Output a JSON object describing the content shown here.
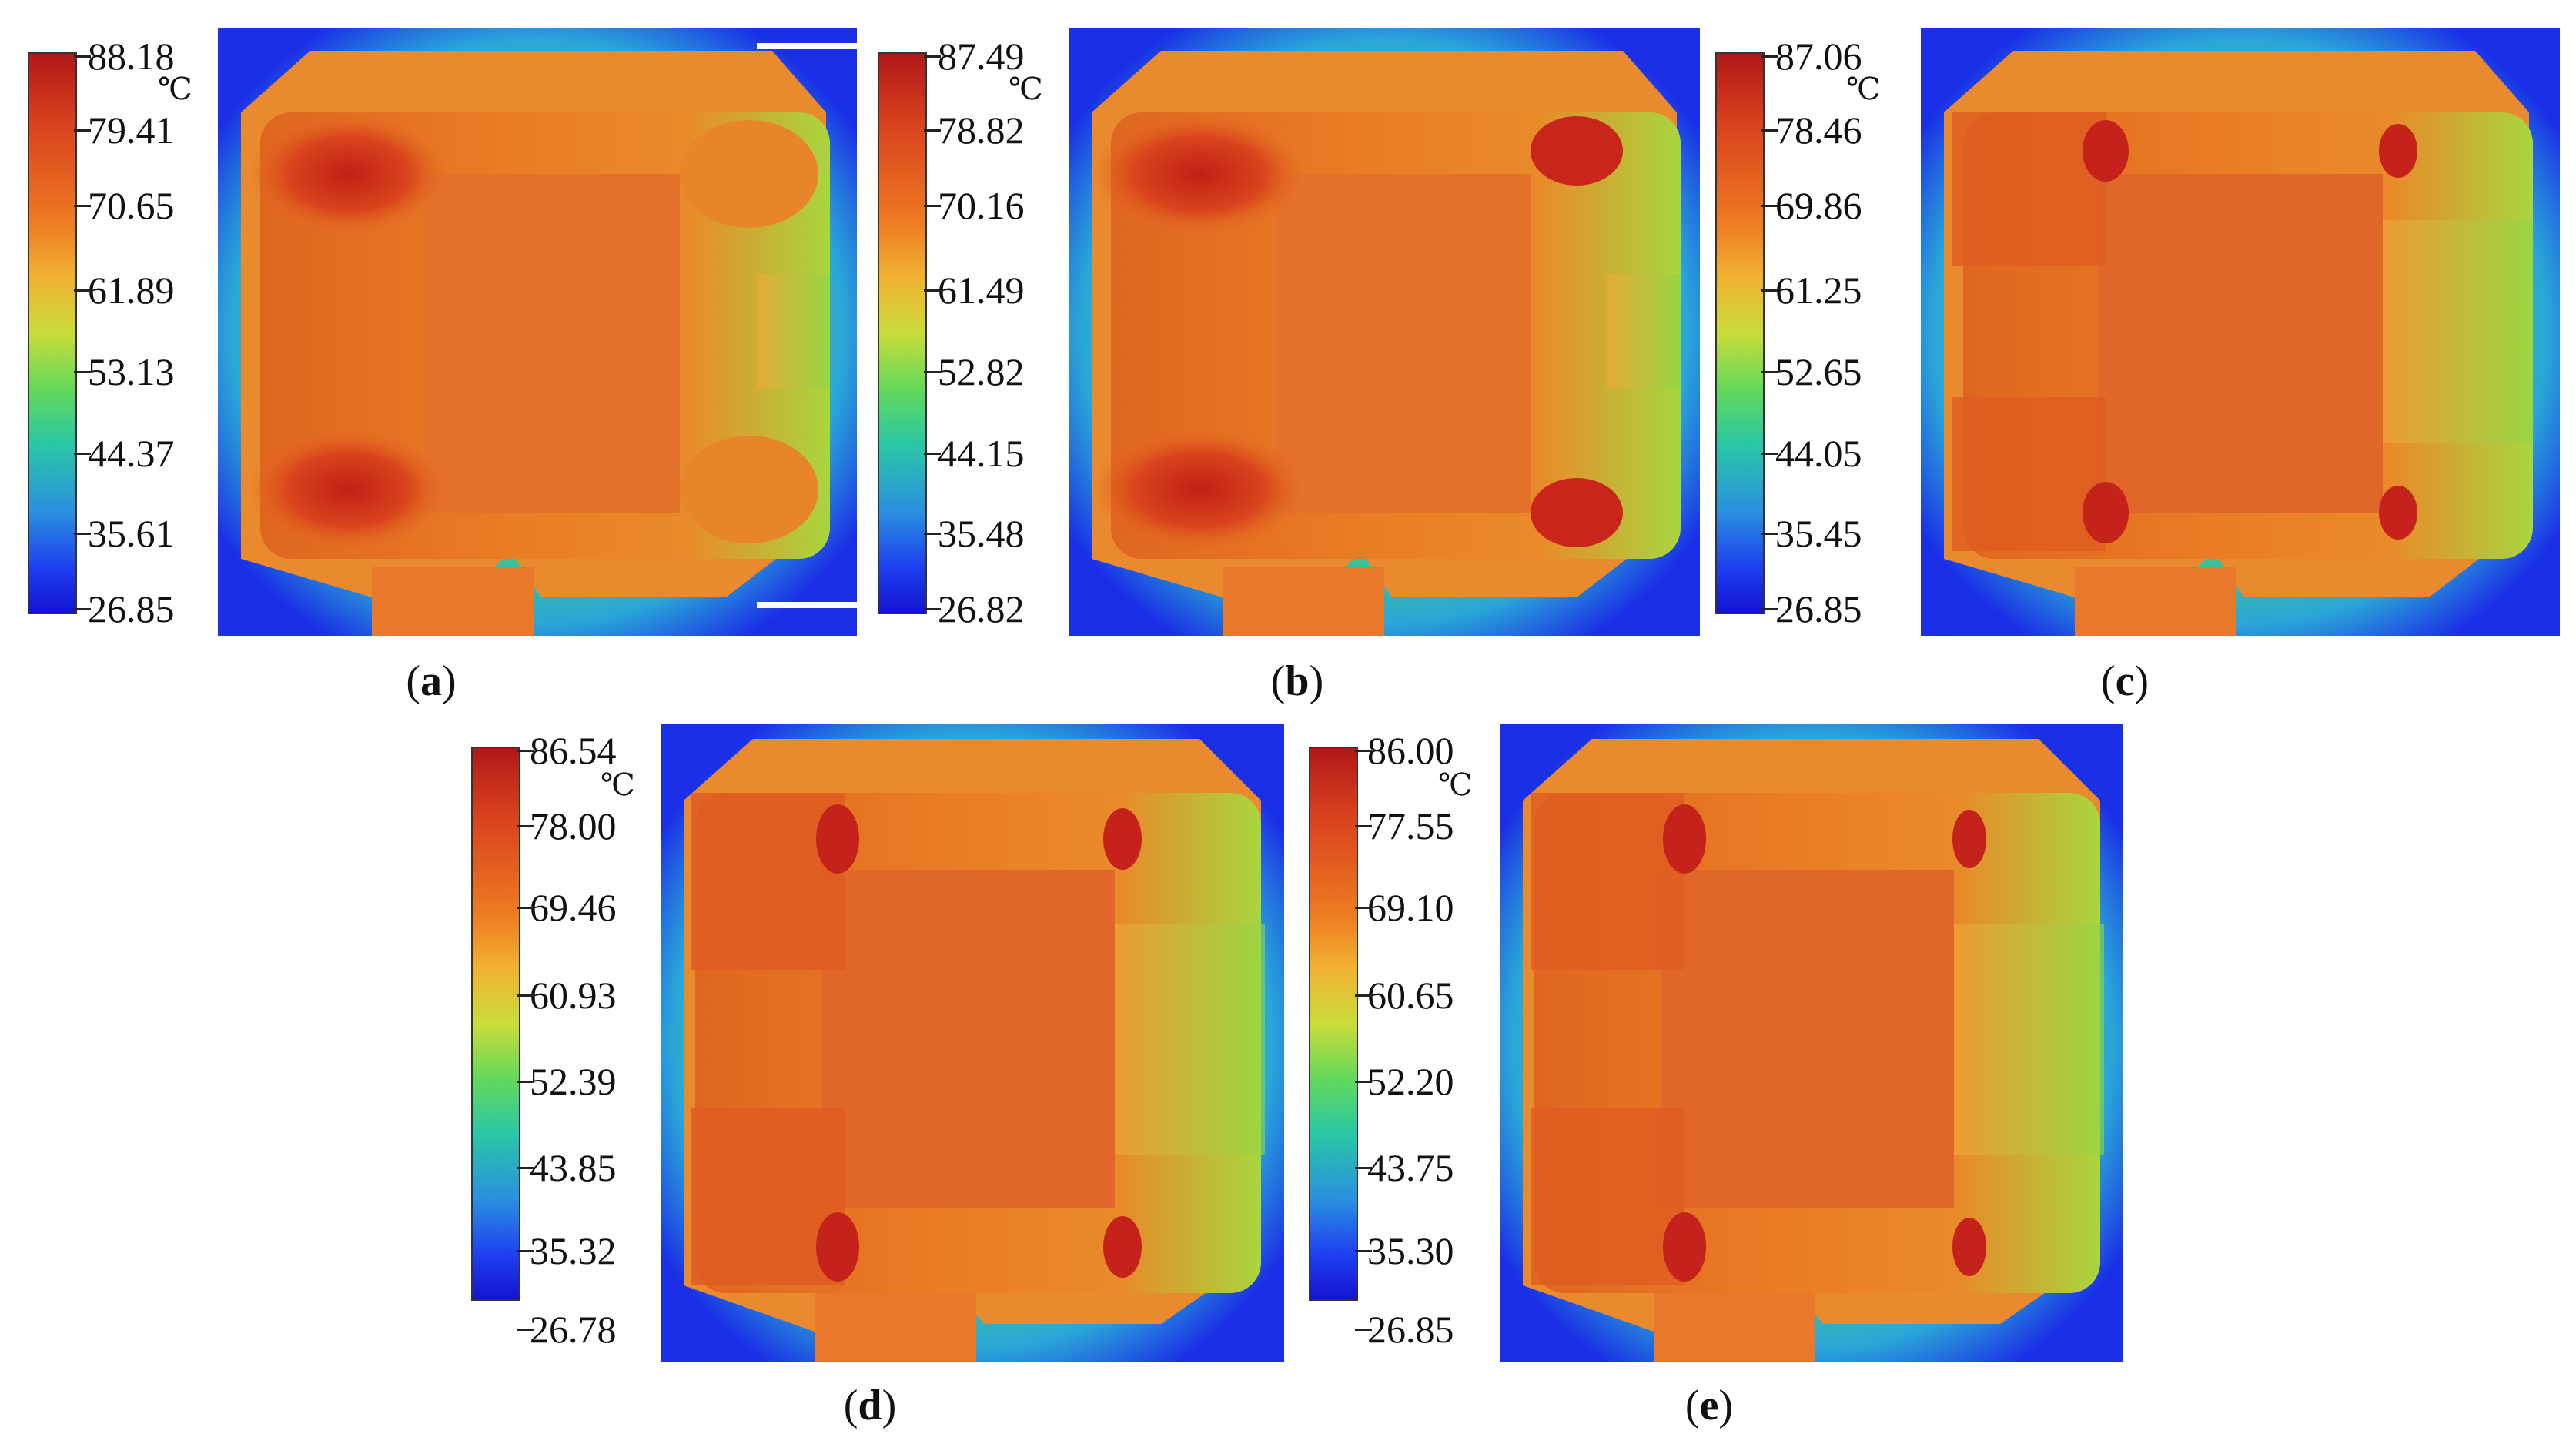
{
  "panels": [
    {
      "id": "a",
      "caption_letter": "a",
      "unit": "℃",
      "scale_labels": [
        "88.18",
        "79.41",
        "70.65",
        "61.89",
        "53.13",
        "44.37",
        "35.61",
        "26.85"
      ]
    },
    {
      "id": "b",
      "caption_letter": "b",
      "unit": "℃",
      "scale_labels": [
        "87.49",
        "78.82",
        "70.16",
        "61.49",
        "52.82",
        "44.15",
        "35.48",
        "26.82"
      ]
    },
    {
      "id": "c",
      "caption_letter": "c",
      "unit": "℃",
      "scale_labels": [
        "87.06",
        "78.46",
        "69.86",
        "61.25",
        "52.65",
        "44.05",
        "35.45",
        "26.85"
      ]
    },
    {
      "id": "d",
      "caption_letter": "d",
      "unit": "℃",
      "scale_labels": [
        "86.54",
        "78.00",
        "69.46",
        "60.93",
        "52.39",
        "43.85",
        "35.32",
        "26.78"
      ]
    },
    {
      "id": "e",
      "caption_letter": "e",
      "unit": "℃",
      "scale_labels": [
        "86.00",
        "77.55",
        "69.10",
        "60.65",
        "52.20",
        "43.75",
        "35.30",
        "26.85"
      ]
    }
  ],
  "colors": {
    "cold": "#1414d0",
    "hot": "#b01818",
    "mid": "#e8782a"
  }
}
